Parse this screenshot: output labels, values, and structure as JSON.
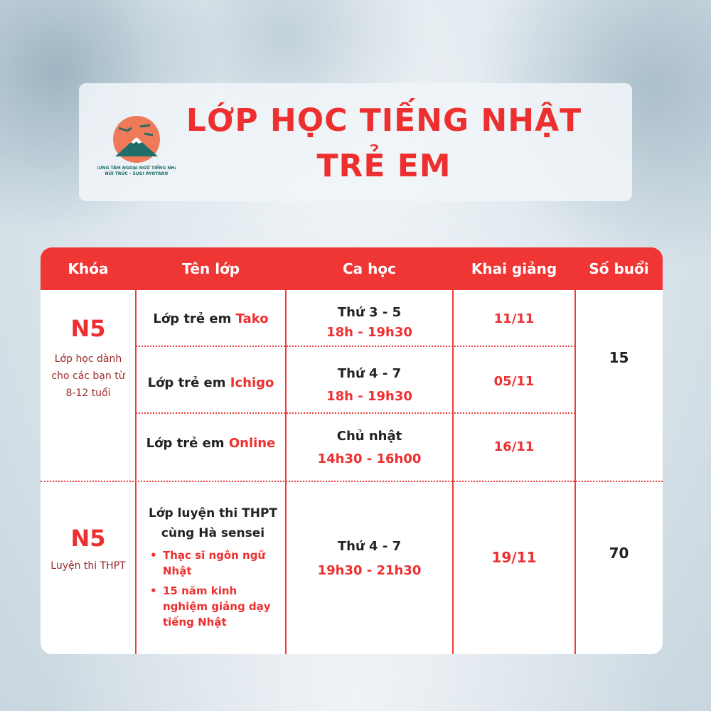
{
  "header": {
    "title_line1": "LỚP HỌC TIẾNG NHẬT",
    "title_line2": "TRẺ EM",
    "logo_text": "TRUNG TÂM NGOẠI NGỮ TIẾNG NHẬT NÚI TRÚC - SUGI RYOTARO"
  },
  "colors": {
    "accent": "#f03535",
    "text": "#222222"
  },
  "table": {
    "columns": [
      "Khóa",
      "Tên lớp",
      "Ca học",
      "Khai giảng",
      "Số buổi"
    ],
    "groups": [
      {
        "course": "N5",
        "course_desc": "Lớp học dành cho các bạn từ 8-12 tuổi",
        "sessions": "15",
        "rows": [
          {
            "class_prefix": "Lớp trẻ em ",
            "class_name": "Tako",
            "days": "Thứ 3 - 5",
            "time": "18h - 19h30",
            "start": "11/11"
          },
          {
            "class_prefix": "Lớp trẻ em ",
            "class_name": "Ichigo",
            "days": "Thứ 4 - 7",
            "time": "18h - 19h30",
            "start": "05/11"
          },
          {
            "class_prefix": "Lớp trẻ em ",
            "class_name": "Online",
            "days": "Chủ nhật",
            "time": "14h30 - 16h00",
            "start": "16/11"
          }
        ]
      },
      {
        "course": "N5",
        "course_desc": "Luyện thi THPT",
        "sessions": "70",
        "rows": [
          {
            "class_title": "Lớp luyện thi THPT cùng Hà sensei",
            "bullets": [
              "Thạc sĩ ngôn ngữ Nhật",
              "15 năm kinh nghiệm giảng dạy tiếng Nhật"
            ],
            "days": "Thứ 4 - 7",
            "time": "19h30 - 21h30",
            "start": "19/11"
          }
        ]
      }
    ]
  }
}
